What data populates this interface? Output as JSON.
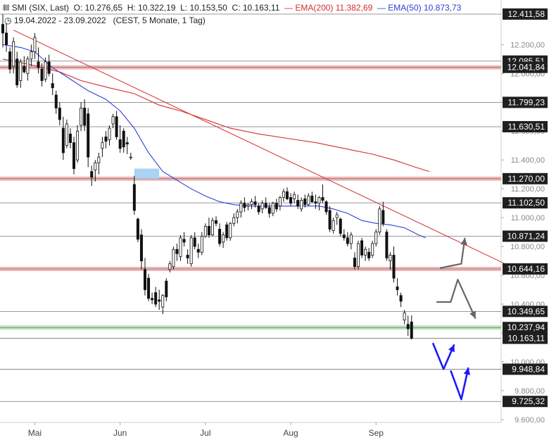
{
  "header": {
    "instrument": "SMI (SIX, Last)",
    "open_label": "O:",
    "open": "10.276,65",
    "high_label": "H:",
    "high": "10.322,19",
    "low_label": "L:",
    "low": "10.153,50",
    "close_label": "C:",
    "close": "10.163,11",
    "ema200_label": "EMA(200)",
    "ema200_value": "11.382,69",
    "ema50_label": "EMA(50)",
    "ema50_value": "10.873,73",
    "range": "19.04.2022 - 23.09.2022",
    "period": "(CEST, 5 Monate, 1 Tag)"
  },
  "colors": {
    "candle": "#111111",
    "ema200": "#d32f2f",
    "ema50": "#2f3fd8",
    "trendline": "#d32f2f",
    "resistance_band": "#f4b6b6",
    "support_band": "#b9e3b9",
    "highlight_box": "#a9d3f2",
    "arrow_grey": "#666666",
    "arrow_blue": "#1a1aff",
    "level_line": "#777777",
    "label_bg": "#1f1f1f",
    "label_text": "#ffffff",
    "axis_text": "#888888"
  },
  "chart_data": {
    "type": "candlestick",
    "ylim": [
      9580,
      12470
    ],
    "y_ticks": [
      {
        "value": 12200,
        "label": "12.200,00"
      },
      {
        "value": 12000,
        "label": "12.000,00"
      },
      {
        "value": 11800,
        "label": "11.800,00"
      },
      {
        "value": 11600,
        "label": "11.600,00"
      },
      {
        "value": 11400,
        "label": "11.400,00"
      },
      {
        "value": 11200,
        "label": "11.200,00"
      },
      {
        "value": 11000,
        "label": "11.000,00"
      },
      {
        "value": 10800,
        "label": "10.800,00"
      },
      {
        "value": 10600,
        "label": "10.600,00"
      },
      {
        "value": 10400,
        "label": "10.400,00"
      },
      {
        "value": 10200,
        "label": "10.200,00"
      },
      {
        "value": 10000,
        "label": "10.000,00"
      },
      {
        "value": 9800,
        "label": "9.800,00"
      },
      {
        "value": 9600,
        "label": "9.600,00"
      }
    ],
    "x_ticks": [
      {
        "index": 9,
        "label": "Mai"
      },
      {
        "index": 33,
        "label": "Jun"
      },
      {
        "index": 57,
        "label": "Jul"
      },
      {
        "index": 81,
        "label": "Aug"
      },
      {
        "index": 105,
        "label": "Sep"
      }
    ],
    "levels": [
      {
        "value": 12411.58,
        "label": "12.411,58",
        "band": "none"
      },
      {
        "value": 12085.51,
        "label": "12.085,51",
        "band": "none"
      },
      {
        "value": 12041.84,
        "label": "12.041,84",
        "band": "resistance"
      },
      {
        "value": 11799.23,
        "label": "11.799,23",
        "band": "none"
      },
      {
        "value": 11630.51,
        "label": "11.630,51",
        "band": "none"
      },
      {
        "value": 11270.0,
        "label": "11.270,00",
        "band": "resistance"
      },
      {
        "value": 11102.5,
        "label": "11.102,50",
        "band": "none"
      },
      {
        "value": 10871.24,
        "label": "10.871,24",
        "band": "none"
      },
      {
        "value": 10644.16,
        "label": "10.644,16",
        "band": "resistance"
      },
      {
        "value": 10349.65,
        "label": "10.349,65",
        "band": "none"
      },
      {
        "value": 10237.94,
        "label": "10.237,94",
        "band": "support"
      },
      {
        "value": 10163.11,
        "label": "10.163,11",
        "band": "none"
      },
      {
        "value": 9948.84,
        "label": "9.948,84",
        "band": "none"
      },
      {
        "value": 9725.32,
        "label": "9.725,32",
        "band": "none"
      }
    ],
    "candles": [
      [
        12340,
        12411,
        12180,
        12280
      ],
      [
        12280,
        12350,
        12150,
        12200
      ],
      [
        12150,
        12180,
        12000,
        12030
      ],
      [
        12050,
        12250,
        12000,
        12220
      ],
      [
        12100,
        12150,
        11900,
        11920
      ],
      [
        11950,
        12100,
        11900,
        12080
      ],
      [
        12050,
        12120,
        12000,
        12010
      ],
      [
        12000,
        12120,
        11950,
        12100
      ],
      [
        12100,
        12200,
        12050,
        12150
      ],
      [
        12150,
        12280,
        12100,
        12250
      ],
      [
        12080,
        12180,
        12000,
        12040
      ],
      [
        12030,
        12070,
        11910,
        11950
      ],
      [
        11960,
        12110,
        11940,
        12080
      ],
      [
        12080,
        12130,
        11980,
        12000
      ],
      [
        11930,
        12000,
        11850,
        11900
      ],
      [
        11850,
        11880,
        11720,
        11760
      ],
      [
        11760,
        11800,
        11640,
        11680
      ],
      [
        11620,
        11700,
        11400,
        11450
      ],
      [
        11500,
        11680,
        11480,
        11650
      ],
      [
        11580,
        11620,
        11480,
        11520
      ],
      [
        11520,
        11560,
        11300,
        11340
      ],
      [
        11400,
        11640,
        11380,
        11600
      ],
      [
        11640,
        11800,
        11600,
        11760
      ],
      [
        11760,
        11820,
        11600,
        11640
      ],
      [
        11720,
        11760,
        11350,
        11420
      ],
      [
        11320,
        11360,
        11220,
        11280
      ],
      [
        11330,
        11400,
        11250,
        11380
      ],
      [
        11380,
        11450,
        11300,
        11420
      ],
      [
        11480,
        11560,
        11420,
        11520
      ],
      [
        11560,
        11600,
        11480,
        11530
      ],
      [
        11540,
        11640,
        11500,
        11620
      ],
      [
        11650,
        11720,
        11620,
        11700
      ],
      [
        11700,
        11740,
        11540,
        11560
      ],
      [
        11540,
        11640,
        11450,
        11480
      ],
      [
        11600,
        11620,
        11450,
        11490
      ],
      [
        11520,
        11560,
        11440,
        11510
      ],
      [
        11420,
        11450,
        11400,
        11420
      ],
      [
        11230,
        11290,
        11020,
        11050
      ],
      [
        10990,
        11000,
        10830,
        10850
      ],
      [
        10880,
        10920,
        10640,
        10700
      ],
      [
        10640,
        10720,
        10460,
        10500
      ],
      [
        10580,
        10610,
        10420,
        10440
      ],
      [
        10440,
        10480,
        10400,
        10430
      ],
      [
        10480,
        10520,
        10380,
        10400
      ],
      [
        10430,
        10500,
        10360,
        10420
      ],
      [
        10380,
        10470,
        10330,
        10460
      ],
      [
        10560,
        10580,
        10420,
        10450
      ],
      [
        10640,
        10700,
        10620,
        10680
      ],
      [
        10660,
        10800,
        10640,
        10780
      ],
      [
        10780,
        10820,
        10700,
        10750
      ],
      [
        10730,
        10880,
        10700,
        10860
      ],
      [
        10850,
        10900,
        10800,
        10830
      ],
      [
        10740,
        10780,
        10680,
        10720
      ],
      [
        10680,
        10880,
        10660,
        10860
      ],
      [
        10860,
        10900,
        10780,
        10800
      ],
      [
        10780,
        10820,
        10720,
        10760
      ],
      [
        10760,
        10900,
        10740,
        10870
      ],
      [
        10870,
        10960,
        10860,
        10940
      ],
      [
        10940,
        11000,
        10860,
        10880
      ],
      [
        10880,
        11000,
        10870,
        10980
      ],
      [
        10980,
        11010,
        10940,
        10960
      ],
      [
        10920,
        10960,
        10800,
        10820
      ],
      [
        10830,
        10900,
        10790,
        10880
      ],
      [
        10950,
        10970,
        10840,
        10860
      ],
      [
        10860,
        10970,
        10840,
        10960
      ],
      [
        10960,
        11030,
        10940,
        11000
      ],
      [
        11000,
        11060,
        10960,
        11040
      ],
      [
        11040,
        11120,
        11000,
        11100
      ],
      [
        11100,
        11140,
        11040,
        11070
      ],
      [
        11080,
        11100,
        11050,
        11090
      ],
      [
        11090,
        11130,
        11060,
        11110
      ],
      [
        11110,
        11150,
        11070,
        11090
      ],
      [
        11080,
        11100,
        11020,
        11040
      ],
      [
        11060,
        11120,
        11030,
        11100
      ],
      [
        11100,
        11140,
        11060,
        11070
      ],
      [
        11070,
        11100,
        11000,
        11030
      ],
      [
        11030,
        11110,
        11010,
        11100
      ],
      [
        11100,
        11130,
        11040,
        11060
      ],
      [
        11080,
        11150,
        11050,
        11140
      ],
      [
        11140,
        11200,
        11110,
        11180
      ],
      [
        11180,
        11210,
        11120,
        11130
      ],
      [
        11140,
        11170,
        11080,
        11100
      ],
      [
        11130,
        11180,
        11100,
        11160
      ],
      [
        11120,
        11160,
        11060,
        11080
      ],
      [
        11060,
        11140,
        11040,
        11120
      ],
      [
        11130,
        11160,
        11070,
        11090
      ],
      [
        11090,
        11170,
        11080,
        11150
      ],
      [
        11150,
        11180,
        11100,
        11110
      ],
      [
        11110,
        11160,
        11060,
        11100
      ],
      [
        11100,
        11150,
        11050,
        11140
      ],
      [
        11140,
        11230,
        11100,
        11120
      ],
      [
        11110,
        11120,
        11020,
        11040
      ],
      [
        11050,
        11080,
        10900,
        10920
      ],
      [
        10910,
        11000,
        10890,
        10980
      ],
      [
        11000,
        11040,
        10950,
        11020
      ],
      [
        10990,
        11000,
        10870,
        10890
      ],
      [
        10880,
        10920,
        10840,
        10860
      ],
      [
        10860,
        10900,
        10800,
        10820
      ],
      [
        10820,
        10900,
        10780,
        10880
      ],
      [
        10720,
        10760,
        10640,
        10660
      ],
      [
        10660,
        10840,
        10640,
        10820
      ],
      [
        10840,
        10860,
        10720,
        10740
      ],
      [
        10740,
        10800,
        10700,
        10780
      ],
      [
        10760,
        10790,
        10700,
        10720
      ],
      [
        10740,
        10840,
        10720,
        10820
      ],
      [
        10820,
        10920,
        10800,
        10900
      ],
      [
        10900,
        11080,
        10880,
        11060
      ],
      [
        11050,
        11110,
        10940,
        10960
      ],
      [
        10900,
        10920,
        10700,
        10720
      ],
      [
        10700,
        10760,
        10640,
        10740
      ],
      [
        10740,
        10800,
        10550,
        10580
      ],
      [
        10520,
        10580,
        10460,
        10500
      ],
      [
        10460,
        10480,
        10380,
        10420
      ],
      [
        10290,
        10360,
        10260,
        10340
      ],
      [
        10260,
        10320,
        10180,
        10230
      ],
      [
        10276.65,
        10322.19,
        10153.5,
        10163.11
      ]
    ],
    "ema50": [
      [
        0,
        12200
      ],
      [
        5,
        12180
      ],
      [
        9,
        12150
      ],
      [
        14,
        12040
      ],
      [
        19,
        11960
      ],
      [
        24,
        11880
      ],
      [
        29,
        11820
      ],
      [
        33,
        11740
      ],
      [
        37,
        11620
      ],
      [
        41,
        11450
      ],
      [
        45,
        11320
      ],
      [
        49,
        11260
      ],
      [
        53,
        11200
      ],
      [
        57,
        11150
      ],
      [
        61,
        11110
      ],
      [
        65,
        11090
      ],
      [
        69,
        11080
      ],
      [
        73,
        11080
      ],
      [
        77,
        11080
      ],
      [
        81,
        11080
      ],
      [
        85,
        11080
      ],
      [
        89,
        11080
      ],
      [
        93,
        11060
      ],
      [
        97,
        11030
      ],
      [
        101,
        10980
      ],
      [
        105,
        10960
      ],
      [
        109,
        10950
      ],
      [
        113,
        10930
      ],
      [
        117,
        10880
      ],
      [
        119,
        10860
      ]
    ],
    "ema200": [
      [
        0,
        12100
      ],
      [
        8,
        12060
      ],
      [
        16,
        12010
      ],
      [
        22,
        11950
      ],
      [
        30,
        11900
      ],
      [
        37,
        11860
      ],
      [
        44,
        11780
      ],
      [
        50,
        11740
      ],
      [
        57,
        11680
      ],
      [
        64,
        11620
      ],
      [
        72,
        11580
      ],
      [
        80,
        11550
      ],
      [
        88,
        11520
      ],
      [
        96,
        11480
      ],
      [
        104,
        11440
      ],
      [
        110,
        11400
      ],
      [
        116,
        11350
      ],
      [
        120,
        11320
      ]
    ],
    "trendline": {
      "from": [
        3,
        12300
      ],
      "to": [
        143,
        10660
      ]
    },
    "highlight_box": {
      "x0": 37,
      "x1": 44,
      "y_low": 11270,
      "y_high": 11340
    },
    "scenario_arrows": [
      {
        "color": "grey",
        "points": [
          [
            123,
            10650
          ],
          [
            129,
            10680
          ],
          [
            130,
            10860
          ]
        ]
      },
      {
        "color": "grey",
        "points": [
          [
            122,
            10415
          ],
          [
            126,
            10415
          ],
          [
            128,
            10570
          ],
          [
            133,
            10300
          ]
        ]
      },
      {
        "color": "blue",
        "points": [
          [
            121,
            10130
          ],
          [
            124,
            9950
          ],
          [
            127,
            10120
          ]
        ]
      },
      {
        "color": "blue",
        "points": [
          [
            126,
            9940
          ],
          [
            129,
            9740
          ],
          [
            131,
            9960
          ]
        ]
      }
    ]
  }
}
